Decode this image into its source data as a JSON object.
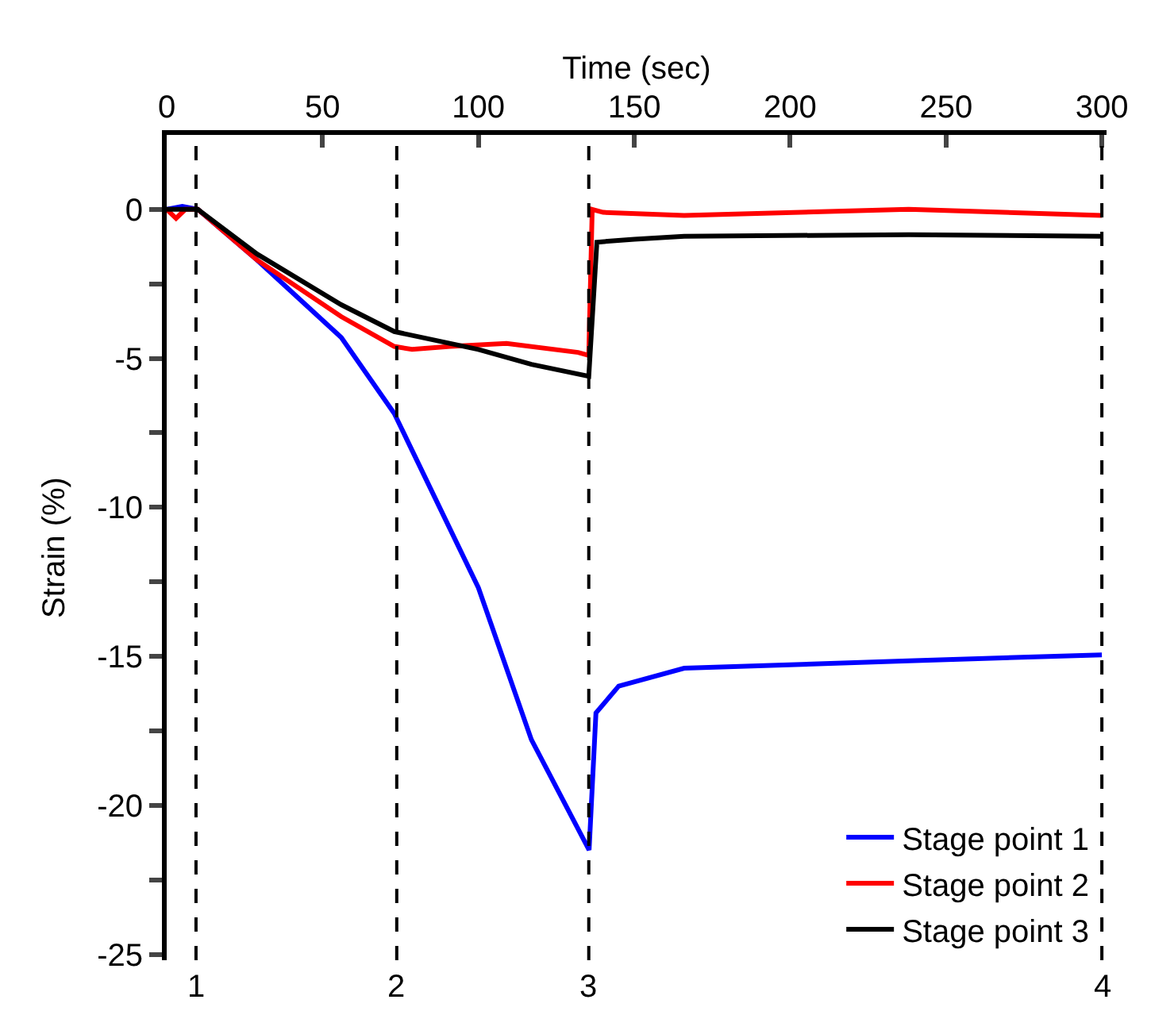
{
  "chart_data": {
    "type": "line",
    "xlabel": "Time (sec)",
    "ylabel": "Strain (%)",
    "xlim": [
      0,
      301.5
    ],
    "xticks": [
      0,
      50,
      100,
      150,
      200,
      250,
      300
    ],
    "ylim": [
      -25.2,
      2.5
    ],
    "yticks": [
      0,
      {
        "value": -2.5,
        "label": null
      },
      -5,
      {
        "value": -7.5,
        "label": null
      },
      -10,
      {
        "value": -12.5,
        "label": null
      },
      -15,
      {
        "value": -17.5,
        "label": null
      },
      -20,
      {
        "value": -22.5,
        "label": null
      },
      -25
    ],
    "legend": "bottom right",
    "marker": "none",
    "line_style": "solid",
    "series": [
      {
        "name": "Stage point 1",
        "color": "#0000ff",
        "x": [
          0,
          5,
          10,
          29,
          56,
          73,
          100,
          117,
          135.5,
          137.7,
          145,
          166,
          238,
          300
        ],
        "values": [
          0,
          0.1,
          0,
          -1.7,
          -4.3,
          -6.85,
          -12.7,
          -17.8,
          -21.5,
          -16.9,
          -16.0,
          -15.4,
          -15.15,
          -14.95
        ]
      },
      {
        "name": "Stage point 2",
        "color": "#ff0000",
        "x": [
          0,
          3,
          6,
          10,
          29,
          56,
          73,
          78.7,
          91,
          109,
          132,
          135.4,
          136.5,
          140,
          166,
          238,
          300
        ],
        "values": [
          0,
          -0.3,
          0,
          0,
          -1.7,
          -3.6,
          -4.6,
          -4.7,
          -4.6,
          -4.5,
          -4.8,
          -4.9,
          0,
          -0.1,
          -0.2,
          0,
          -0.2
        ]
      },
      {
        "name": "Stage point 3",
        "color": "#000000",
        "x": [
          0,
          5,
          10,
          29,
          56,
          73,
          100,
          117,
          135.4,
          138,
          150,
          166,
          238,
          300
        ],
        "values": [
          0,
          0,
          0,
          -1.5,
          -3.2,
          -4.1,
          -4.7,
          -5.2,
          -5.6,
          -1.1,
          -1.0,
          -0.9,
          -0.85,
          -0.9
        ]
      }
    ],
    "annotations": [
      "1",
      "2",
      "3",
      "4"
    ],
    "ref_lines": [
      {
        "axis": "x",
        "value": 9.4,
        "color": "#000000",
        "line_style": "dashed"
      },
      {
        "axis": "x",
        "value": 73.8,
        "color": "#000000",
        "line_style": "dashed"
      },
      {
        "axis": "x",
        "value": 135.4,
        "color": "#000000",
        "line_style": "dashed"
      },
      {
        "axis": "x",
        "value": 300,
        "color": "#000000",
        "line_style": "dashed"
      }
    ]
  }
}
